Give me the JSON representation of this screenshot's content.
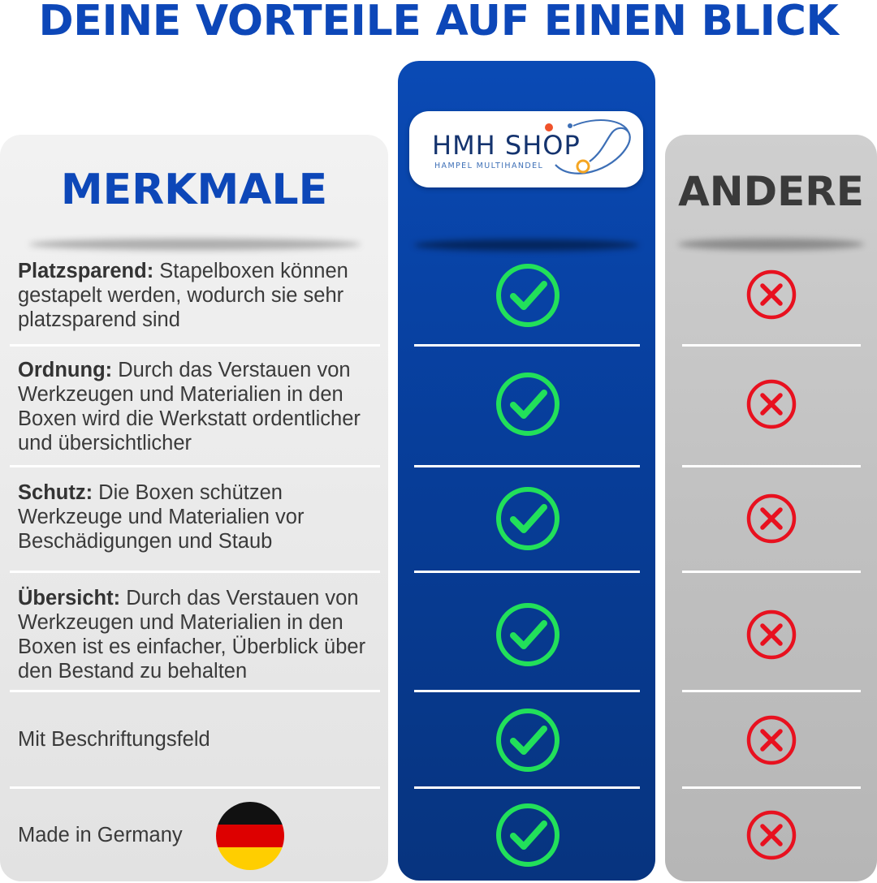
{
  "heading": "DEINE VORTEILE AUF EINEN BLICK",
  "columns": {
    "features_title": "MERKMALE",
    "brand": {
      "logo_main": "HMH SHOP",
      "logo_sub": "HAMPEL MULTIHANDEL"
    },
    "others_title": "ANDERE"
  },
  "features": [
    {
      "label": "Platzsparend:",
      "text": " Stapelboxen können gestapelt werden, wodurch sie sehr platzsparend sind",
      "brand": "check",
      "others": "cross"
    },
    {
      "label": "Ordnung:",
      "text": " Durch das Verstauen von Werkzeugen und Materialien in den Boxen wird die Werkstatt ordentlicher und übersichtlicher",
      "brand": "check",
      "others": "cross"
    },
    {
      "label": "Schutz:",
      "text": " Die Boxen schützen Werkzeuge und Materialien vor Beschädigungen und Staub",
      "brand": "check",
      "others": "cross"
    },
    {
      "label": "Übersicht:",
      "text": " Durch das Verstauen von Werkzeugen und Materialien in den Boxen ist es einfacher, Überblick über den Bestand zu behalten",
      "brand": "check",
      "others": "cross"
    },
    {
      "label": "",
      "text": "Mit Beschriftungsfeld",
      "brand": "check",
      "others": "cross"
    },
    {
      "label": "",
      "text": "Made in Germany",
      "brand": "check",
      "others": "cross"
    }
  ],
  "icons": {
    "check": "check-circle-icon",
    "cross": "x-circle-icon",
    "flag": "germany-flag-icon"
  },
  "colors": {
    "heading_blue": "#0d47b8",
    "brand_column": "#0a4ab5",
    "check_green": "#22e05a",
    "cross_red": "#e8111f"
  }
}
